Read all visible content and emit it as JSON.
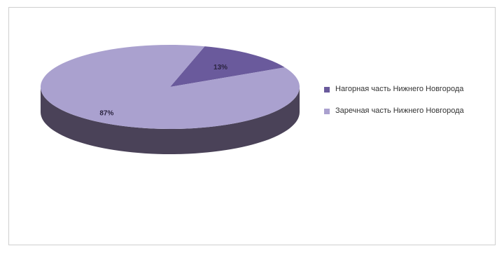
{
  "chart_data": {
    "type": "pie",
    "title": "",
    "categories": [
      "Нагорная часть Нижнего Новгорода",
      "Заречная часть Нижнего Новгорода"
    ],
    "values": [
      13,
      87
    ],
    "data_labels": [
      "13%",
      "87%"
    ],
    "colors": [
      "#6a5a9c",
      "#aaa1cf"
    ],
    "side_colors": [
      "#3a3053",
      "#4a4258"
    ],
    "legend_placement": "right",
    "style": "3d"
  }
}
